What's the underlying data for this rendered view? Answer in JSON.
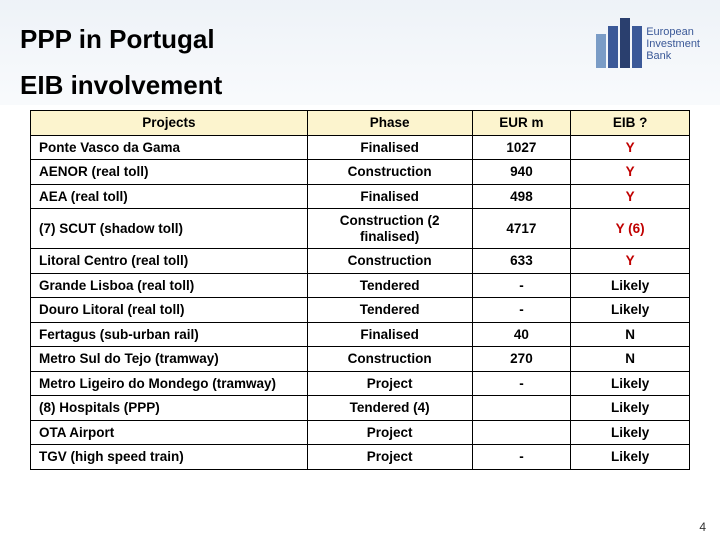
{
  "title_line1": "PPP in Portugal",
  "title_line2": "EIB involvement",
  "logo_text": "European\nInvestment\nBank",
  "page_number": "4",
  "table": {
    "columns": [
      "Projects",
      "Phase",
      "EUR m",
      "EIB ?"
    ],
    "header_bg": "#fcf4ce",
    "red_color": "#c00000",
    "rows": [
      {
        "project": "Ponte Vasco da Gama",
        "phase": "Finalised",
        "eur": "1027",
        "eib": "Y",
        "eib_red": true
      },
      {
        "project": "AENOR (real toll)",
        "phase": "Construction",
        "eur": "940",
        "eib": "Y",
        "eib_red": true
      },
      {
        "project": "AEA (real toll)",
        "phase": "Finalised",
        "eur": "498",
        "eib": "Y",
        "eib_red": true
      },
      {
        "project": "(7) SCUT (shadow toll)",
        "phase": "Construction (2 finalised)",
        "eur": "4717",
        "eib": "Y (6)",
        "eib_red": true
      },
      {
        "project": "Litoral Centro (real toll)",
        "phase": "Construction",
        "eur": "633",
        "eib": "Y",
        "eib_red": true
      },
      {
        "project": "Grande Lisboa (real toll)",
        "phase": "Tendered",
        "eur": "-",
        "eib": "Likely",
        "eib_red": false
      },
      {
        "project": "Douro Litoral (real toll)",
        "phase": "Tendered",
        "eur": "-",
        "eib": "Likely",
        "eib_red": false
      },
      {
        "project": "Fertagus (sub-urban rail)",
        "phase": "Finalised",
        "eur": "40",
        "eib": "N",
        "eib_red": false
      },
      {
        "project": "Metro Sul do Tejo (tramway)",
        "phase": "Construction",
        "eur": "270",
        "eib": "N",
        "eib_red": false
      },
      {
        "project": "Metro Ligeiro do Mondego (tramway)",
        "phase": "Project",
        "eur": "-",
        "eib": "Likely",
        "eib_red": false
      },
      {
        "project": "(8) Hospitals (PPP)",
        "phase": "Tendered (4)",
        "eur": "",
        "eib": "Likely",
        "eib_red": false
      },
      {
        "project": "OTA Airport",
        "phase": "Project",
        "eur": "",
        "eib": "Likely",
        "eib_red": false
      },
      {
        "project": "TGV (high speed train)",
        "phase": "Project",
        "eur": "-",
        "eib": "Likely",
        "eib_red": false
      }
    ]
  }
}
